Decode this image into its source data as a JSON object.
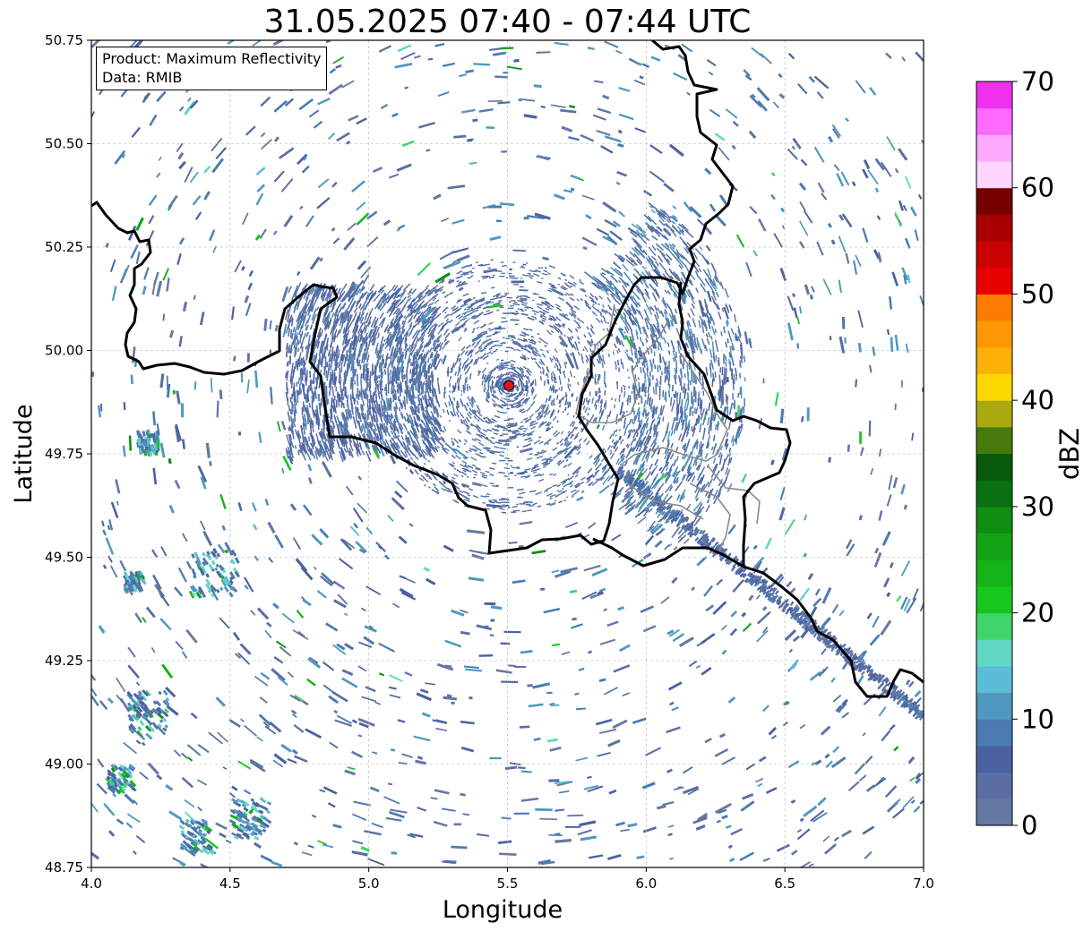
{
  "title": "31.05.2025 07:40 - 07:44 UTC",
  "info_box": {
    "product_line": "Product: Maximum Reflectivity",
    "data_line": "Data: RMIB"
  },
  "axes": {
    "xlabel": "Longitude",
    "ylabel": "Latitude",
    "xlim": [
      4.0,
      7.0
    ],
    "ylim": [
      48.75,
      50.75
    ],
    "xticks": [
      "4.0",
      "4.5",
      "5.0",
      "5.5",
      "6.0",
      "6.5",
      "7.0"
    ],
    "yticks": [
      "48.75",
      "49.00",
      "49.25",
      "49.50",
      "49.75",
      "50.00",
      "50.25",
      "50.50",
      "50.75"
    ],
    "grid": true
  },
  "radar_site": {
    "lon": 5.505,
    "lat": 49.915,
    "color": "#e8111d"
  },
  "colorbar": {
    "label": "dBZ",
    "range": [
      0,
      70
    ],
    "step": 2.5,
    "ticks": [
      "0",
      "10",
      "20",
      "30",
      "40",
      "50",
      "60",
      "70"
    ],
    "colors": [
      "#6677a4",
      "#5a6ea4",
      "#4a62a0",
      "#4a7cb2",
      "#4f99c0",
      "#5dbcd8",
      "#5fd8c4",
      "#3fd46a",
      "#16c81c",
      "#14b41a",
      "#12a414",
      "#0f8e12",
      "#0a7012",
      "#085a0a",
      "#467a0a",
      "#aaaa10",
      "#fdd800",
      "#fcb008",
      "#fd9802",
      "#fd7b00",
      "#e80000",
      "#c80000",
      "#a80000",
      "#760000",
      "#ffd6ff",
      "#ffaaff",
      "#ff6aff",
      "#ee30ee"
    ]
  },
  "map_data": {
    "type": "radar_reflectivity_map",
    "product": "Maximum Reflectivity",
    "units": "dBZ",
    "dominant_reflectivity_range": [
      0,
      10
    ],
    "peak_reflectivity_approx": 30,
    "features": [
      "concentric ground clutter rings around the radar site",
      "linear clutter band running south-east from the radar toward 7.0E 49.1N",
      "scattered weak echoes across the domain"
    ]
  }
}
